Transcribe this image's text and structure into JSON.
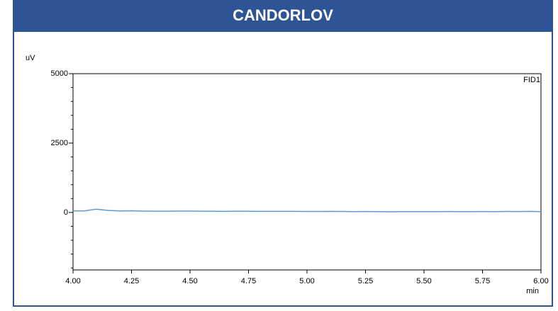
{
  "chart_data": {
    "type": "line",
    "title": "CANDORLOV",
    "ylabel": "uV",
    "xlabel": "min",
    "annotation": "FID1",
    "xlim": [
      4.0,
      6.0
    ],
    "xticks": [
      {
        "value": 4.0,
        "label": "4.00"
      },
      {
        "value": 4.25,
        "label": "4.25"
      },
      {
        "value": 4.5,
        "label": "4.50"
      },
      {
        "value": 4.75,
        "label": "4.75"
      },
      {
        "value": 5.0,
        "label": "5.00"
      },
      {
        "value": 5.25,
        "label": "5.25"
      },
      {
        "value": 5.5,
        "label": "5.50"
      },
      {
        "value": 5.75,
        "label": "5.75"
      },
      {
        "value": 6.0,
        "label": "6.00"
      }
    ],
    "ylim": [
      -2070,
      5000
    ],
    "yticks": [
      0,
      2500,
      5000
    ],
    "y_minor_ticks": [
      -2000,
      -1500,
      -1000,
      -500,
      500,
      1000,
      1500,
      2000,
      3000,
      3500,
      4000,
      4500
    ],
    "x": [
      4.0,
      4.05,
      4.1,
      4.15,
      4.2,
      4.25,
      4.3,
      4.35,
      4.4,
      4.45,
      4.5,
      4.55,
      4.6,
      4.65,
      4.7,
      4.75,
      4.8,
      4.85,
      4.9,
      4.95,
      5.0,
      5.05,
      5.1,
      5.15,
      5.2,
      5.25,
      5.3,
      5.35,
      5.4,
      5.45,
      5.5,
      5.55,
      5.6,
      5.65,
      5.7,
      5.75,
      5.8,
      5.85,
      5.9,
      5.95,
      6.0
    ],
    "series": [
      {
        "name": "FID1",
        "color": "#5b9bd5",
        "values": [
          55,
          58,
          120,
          75,
          55,
          60,
          50,
          45,
          45,
          48,
          50,
          45,
          42,
          40,
          45,
          42,
          40,
          38,
          40,
          38,
          36,
          35,
          40,
          35,
          30,
          32,
          28,
          25,
          28,
          30,
          28,
          30,
          32,
          30,
          30,
          32,
          30,
          35,
          32,
          38,
          30
        ]
      }
    ]
  }
}
